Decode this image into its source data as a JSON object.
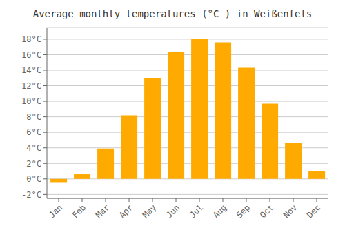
{
  "chart_data": {
    "type": "bar",
    "title": "Average monthly temperatures (°C ) in Weißenfels",
    "categories": [
      "Jan",
      "Feb",
      "Mar",
      "Apr",
      "May",
      "Jun",
      "Jul",
      "Aug",
      "Sep",
      "Oct",
      "Nov",
      "Dec"
    ],
    "values": [
      -0.5,
      0.6,
      3.9,
      8.2,
      13.0,
      16.4,
      18.0,
      17.6,
      14.3,
      9.7,
      4.6,
      1.0
    ],
    "color": "#FFAA00",
    "ylim": [
      -2.5,
      19.5
    ],
    "yticks": [
      {
        "value": -2,
        "label": "-2°C"
      },
      {
        "value": 0,
        "label": "0°C"
      },
      {
        "value": 2,
        "label": "2°C"
      },
      {
        "value": 4,
        "label": "4°C"
      },
      {
        "value": 6,
        "label": "6°C"
      },
      {
        "value": 8,
        "label": "8°C"
      },
      {
        "value": 10,
        "label": "10°C"
      },
      {
        "value": 12,
        "label": "12°C"
      },
      {
        "value": 14,
        "label": "14°C"
      },
      {
        "value": 16,
        "label": "16°C"
      },
      {
        "value": 18,
        "label": "18°C"
      }
    ],
    "grid": true
  }
}
